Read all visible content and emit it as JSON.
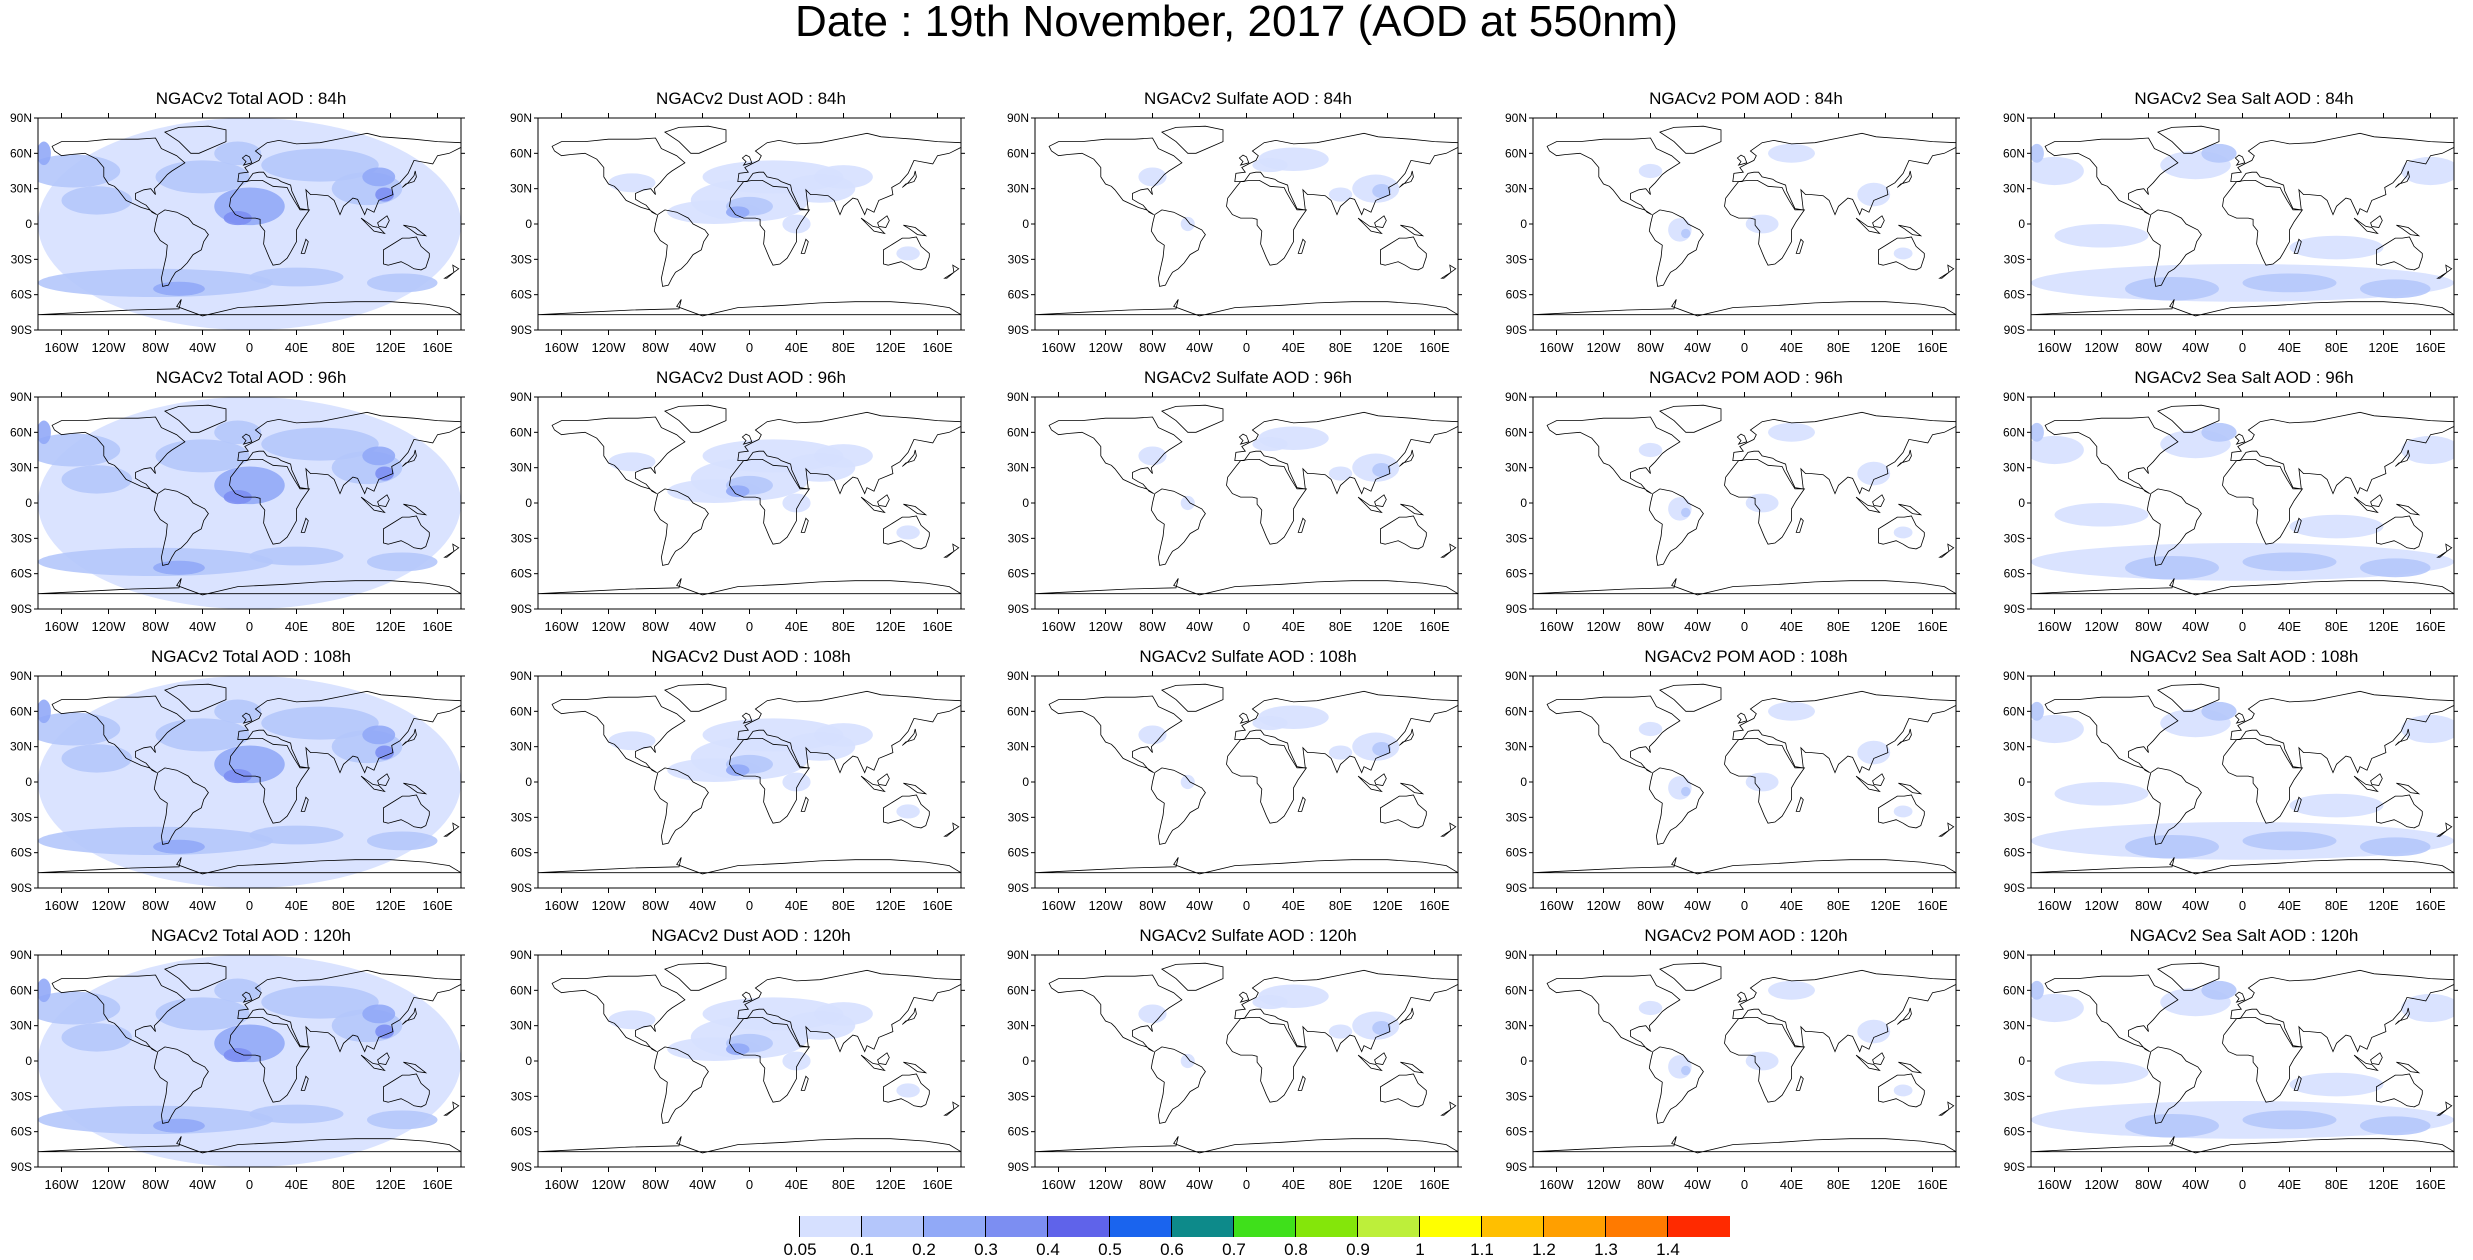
{
  "title": "Date : 19th November, 2017 (AOD at 550nm)",
  "panels": [
    {
      "title": "NGACv2 Total AOD : 84h",
      "species": "total"
    },
    {
      "title": "NGACv2 Dust AOD : 84h",
      "species": "dust"
    },
    {
      "title": "NGACv2 Sulfate AOD : 84h",
      "species": "sulfate"
    },
    {
      "title": "NGACv2 POM AOD : 84h",
      "species": "pom"
    },
    {
      "title": "NGACv2 Sea Salt AOD : 84h",
      "species": "seasalt"
    },
    {
      "title": "NGACv2 Total AOD : 96h",
      "species": "total"
    },
    {
      "title": "NGACv2 Dust AOD : 96h",
      "species": "dust"
    },
    {
      "title": "NGACv2 Sulfate AOD : 96h",
      "species": "sulfate"
    },
    {
      "title": "NGACv2 POM AOD : 96h",
      "species": "pom"
    },
    {
      "title": "NGACv2 Sea Salt AOD : 96h",
      "species": "seasalt"
    },
    {
      "title": "NGACv2 Total AOD : 108h",
      "species": "total"
    },
    {
      "title": "NGACv2 Dust AOD : 108h",
      "species": "dust"
    },
    {
      "title": "NGACv2 Sulfate AOD : 108h",
      "species": "sulfate"
    },
    {
      "title": "NGACv2 POM AOD : 108h",
      "species": "pom"
    },
    {
      "title": "NGACv2 Sea Salt AOD : 108h",
      "species": "seasalt"
    },
    {
      "title": "NGACv2 Total AOD : 120h",
      "species": "total"
    },
    {
      "title": "NGACv2 Dust AOD : 120h",
      "species": "dust"
    },
    {
      "title": "NGACv2 Sulfate AOD : 120h",
      "species": "sulfate"
    },
    {
      "title": "NGACv2 POM AOD : 120h",
      "species": "pom"
    },
    {
      "title": "NGACv2 Sea Salt  AOD : 120h",
      "species": "seasalt"
    }
  ],
  "lat_labels": [
    "90N",
    "60N",
    "30N",
    "0",
    "30S",
    "60S",
    "90S"
  ],
  "lon_labels": [
    "160W",
    "120W",
    "80W",
    "40W",
    "0",
    "40E",
    "80E",
    "120E",
    "160E"
  ],
  "colorbar": {
    "labels": [
      "0.05",
      "0.1",
      "0.2",
      "0.3",
      "0.4",
      "0.5",
      "0.6",
      "0.7",
      "0.8",
      "0.9",
      "1",
      "1.1",
      "1.2",
      "1.3",
      "1.4"
    ],
    "colors": [
      "#ffffff",
      "#d6e0ff",
      "#b4c6fb",
      "#91a9f7",
      "#7c8ef2",
      "#5f63ea",
      "#1a64ee",
      "#0d8a8a",
      "#3fe01b",
      "#84e60a",
      "#bdef3a",
      "#ffff00",
      "#ffbf00",
      "#ff9f00",
      "#ff7a00",
      "#ff2a00"
    ]
  }
}
